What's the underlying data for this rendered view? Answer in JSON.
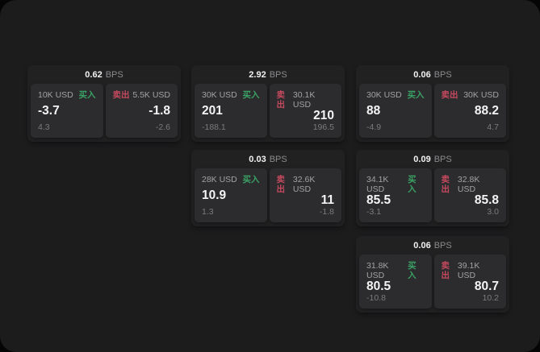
{
  "labels": {
    "buy": "买入",
    "sell": "卖出",
    "bps_unit": "BPS"
  },
  "colors": {
    "window_background": "#1c1c1d",
    "card_background": "#212122",
    "panel_background": "#2c2c2e",
    "buy_green": "#3aa264",
    "sell_red": "#c5495e",
    "primary_text": "#f4f4f4",
    "muted_text": "#a2a2a4",
    "delta_text": "#7b7b7d"
  },
  "cards": [
    {
      "bps": "0.62",
      "buy": {
        "amount": "10K USD",
        "price": "-3.7",
        "delta": "4.3"
      },
      "sell": {
        "amount": "5.5K USD",
        "price": "-1.8",
        "delta": "-2.6"
      }
    },
    {
      "bps": "2.92",
      "buy": {
        "amount": "30K USD",
        "price": "201",
        "delta": "-188.1"
      },
      "sell": {
        "amount": "30.1K USD",
        "price": "210",
        "delta": "196.5"
      }
    },
    {
      "bps": "0.06",
      "buy": {
        "amount": "30K USD",
        "price": "88",
        "delta": "-4.9"
      },
      "sell": {
        "amount": "30K USD",
        "price": "88.2",
        "delta": "4.7"
      }
    },
    {
      "bps": "0.03",
      "buy": {
        "amount": "28K USD",
        "price": "10.9",
        "delta": "1.3"
      },
      "sell": {
        "amount": "32.6K USD",
        "price": "11",
        "delta": "-1.8"
      }
    },
    {
      "bps": "0.09",
      "buy": {
        "amount": "34.1K USD",
        "price": "85.5",
        "delta": "-3.1"
      },
      "sell": {
        "amount": "32.8K USD",
        "price": "85.8",
        "delta": "3.0"
      }
    },
    {
      "bps": "0.06",
      "buy": {
        "amount": "31.8K USD",
        "price": "80.5",
        "delta": "-10.8"
      },
      "sell": {
        "amount": "39.1K USD",
        "price": "80.7",
        "delta": "10.2"
      }
    }
  ]
}
